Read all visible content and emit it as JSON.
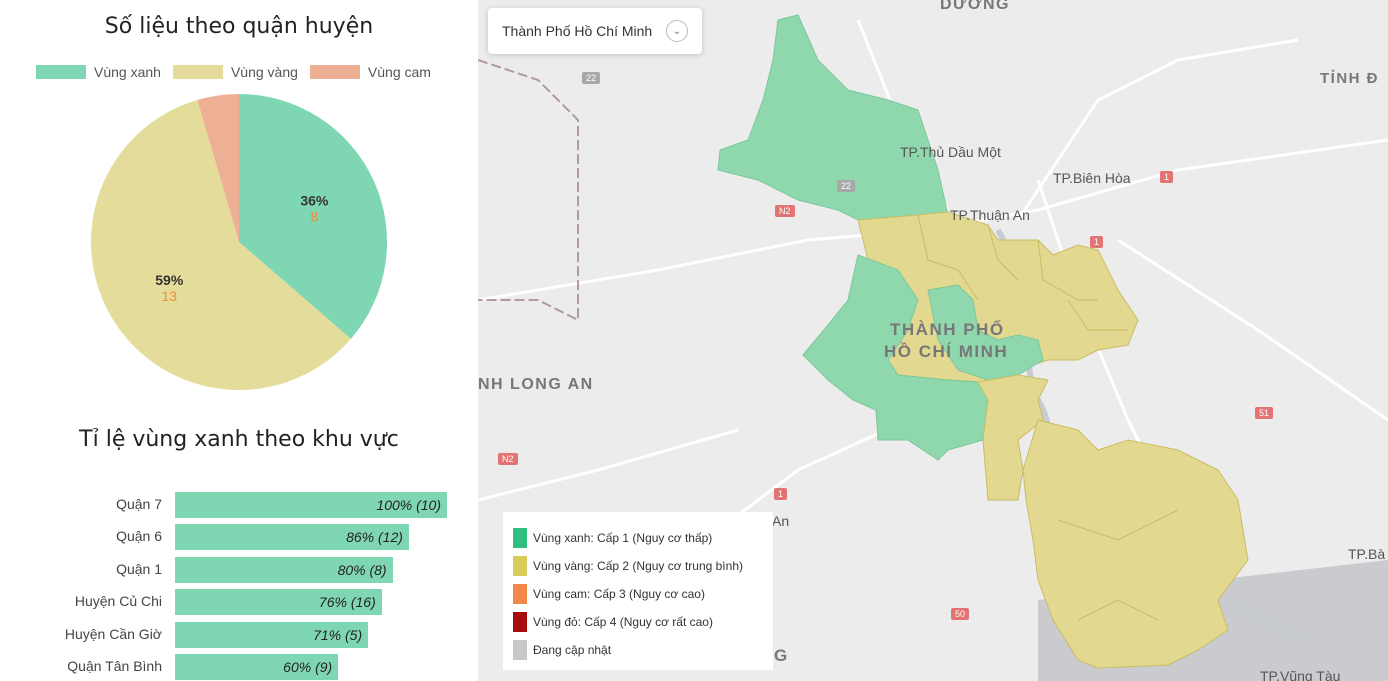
{
  "pie_section": {
    "title": "Số liệu theo quận huyện",
    "legend": [
      {
        "label": "Vùng xanh",
        "color": "#7fd6b2"
      },
      {
        "label": "Vùng vàng",
        "color": "#e3dc9a"
      },
      {
        "label": "Vùng cam",
        "color": "#eeb095"
      }
    ]
  },
  "bar_section": {
    "title": "Tỉ lệ vùng xanh theo khu vực"
  },
  "chart_data": [
    {
      "type": "pie",
      "title": "Số liệu theo quận huyện",
      "slices": [
        {
          "name": "Vùng xanh",
          "value": 8,
          "percent_label": "36%",
          "count_label": "8",
          "color": "#7fd6b2"
        },
        {
          "name": "Vùng vàng",
          "value": 13,
          "percent_label": "59%",
          "count_label": "13",
          "color": "#e3dc9a"
        },
        {
          "name": "Vùng cam",
          "value": 1,
          "percent_label": "",
          "count_label": "",
          "color": "#eeb095"
        }
      ]
    },
    {
      "type": "bar",
      "orientation": "horizontal",
      "title": "Tỉ lệ vùng xanh theo khu vực",
      "categories": [
        "Quận 7",
        "Quận 6",
        "Quận 1",
        "Huyện Củ Chi",
        "Huyện Cần Giờ",
        "Quận Tân Bình"
      ],
      "values": [
        100,
        86,
        80,
        76,
        71,
        60
      ],
      "value_labels": [
        "100% (10)",
        "86% (12)",
        "80% (8)",
        "76% (16)",
        "71% (5)",
        "60% (9)"
      ],
      "xlim": [
        0,
        100
      ],
      "color": "#7fd6b2"
    }
  ],
  "map": {
    "city_select": "Thành Phố Hồ Chí Minh",
    "labels": {
      "duong": "DƯƠNG",
      "tinh": "TỈNH Đ",
      "thu_dau_mot": "TP.Thủ Dầu Một",
      "bien_hoa": "TP.Biên Hòa",
      "thuan_an": "TP.Thuận An",
      "city1": "THÀNH PHỐ",
      "city2": "HỒ CHÍ MINH",
      "long_an": "NH LONG AN",
      "an": "An",
      "tp_ba": "TP.Bà",
      "vung_tau": "TP.Vũng Tàu",
      "g": "G"
    },
    "roads": {
      "r22a": "22",
      "r22b": "22",
      "n2a": "N2",
      "n2b": "N2",
      "r1a": "1",
      "r1b": "1",
      "r1c": "1",
      "r51": "51",
      "r50": "50"
    },
    "legend": [
      {
        "label": "Vùng xanh: Cấp 1 (Nguy cơ thấp)",
        "color": "#2fbf7f"
      },
      {
        "label": "Vùng vàng: Cấp 2 (Nguy cơ trung bình)",
        "color": "#d9cd5a"
      },
      {
        "label": "Vùng cam: Cấp 3 (Nguy cơ cao)",
        "color": "#f2894a"
      },
      {
        "label": "Vùng đỏ: Cấp 4 (Nguy cơ rất cao)",
        "color": "#a80d0d"
      },
      {
        "label": "Đang cập nhật",
        "color": "#c8c8c8"
      }
    ]
  }
}
